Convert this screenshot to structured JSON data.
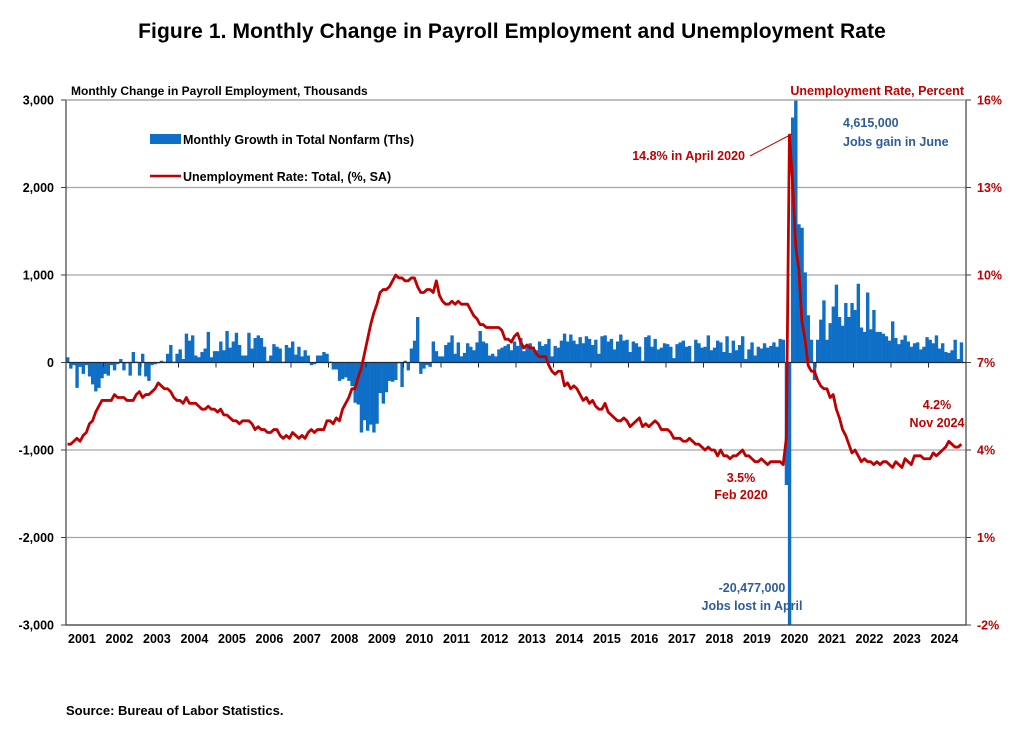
{
  "title": "Figure 1. Monthly Change in Payroll Employment and Unemployment Rate",
  "source": "Source: Bureau of Labor Statistics.",
  "chart_data": {
    "type": "bar+line",
    "title": "Figure 1. Monthly Change in Payroll Employment and Unemployment Rate",
    "left_axis": {
      "label": "Monthly Change in Payroll Employment, Thousands",
      "range": [
        -3000,
        3000
      ],
      "ticks": [
        3000,
        2000,
        1000,
        0,
        -1000,
        -2000,
        -3000
      ],
      "tick_labels": [
        "3,000",
        "2,000",
        "1,000",
        "0",
        "-1,000",
        "-2,000",
        "-3,000"
      ]
    },
    "right_axis": {
      "label": "Unemployment Rate, Percent",
      "range": [
        -2,
        16
      ],
      "ticks": [
        16,
        13,
        10,
        7,
        4,
        1,
        -2
      ],
      "tick_labels": [
        "16%",
        "13%",
        "10%",
        "7%",
        "4%",
        "1%",
        "-2%"
      ]
    },
    "x_axis": {
      "start": "2001-01",
      "end": "2024-11",
      "tick_labels": [
        "2001",
        "2002",
        "2003",
        "2004",
        "2005",
        "2006",
        "2007",
        "2008",
        "2009",
        "2010",
        "2011",
        "2012",
        "2013",
        "2014",
        "2015",
        "2016",
        "2017",
        "2018",
        "2019",
        "2020",
        "2021",
        "2022",
        "2023",
        "2024"
      ]
    },
    "grid": true,
    "legend": {
      "placement": "top-left",
      "entries": [
        {
          "label": "Monthly Growth in Total Nonfarm (Ths)",
          "type": "bar",
          "color": "#0f6fc6"
        },
        {
          "label": "Unemployment Rate: Total, (%, SA)",
          "type": "line",
          "color": "#c00000"
        }
      ]
    },
    "colors": {
      "bar": "#0f6fc6",
      "line": "#c00000",
      "grid": "#a6a6a6",
      "axis": "#404040"
    },
    "series": [
      {
        "name": "Monthly Growth in Total Nonfarm (Ths)",
        "axis": "left",
        "type": "bar",
        "yearly_monthly_values": {
          "2001": [
            60,
            -70,
            -30,
            -290,
            -50,
            -130,
            -30,
            -160,
            -250,
            -330,
            -290,
            -180
          ],
          "2002": [
            -130,
            -150,
            -30,
            -90,
            -20,
            40,
            -90,
            -10,
            -150,
            120,
            10,
            -150
          ],
          "2003": [
            100,
            -160,
            -210,
            -30,
            -20,
            -10,
            20,
            10,
            100,
            200,
            10,
            100
          ],
          "2004": [
            150,
            40,
            330,
            250,
            310,
            80,
            60,
            120,
            160,
            350,
            60,
            130
          ],
          "2005": [
            130,
            240,
            140,
            360,
            170,
            240,
            340,
            200,
            80,
            80,
            340,
            160
          ],
          "2006": [
            280,
            310,
            280,
            180,
            20,
            80,
            210,
            180,
            160,
            10,
            200,
            170
          ],
          "2007": [
            240,
            90,
            180,
            70,
            140,
            80,
            -30,
            -20,
            80,
            80,
            120,
            100
          ],
          "2008": [
            10,
            -80,
            -80,
            -210,
            -190,
            -170,
            -210,
            -270,
            -460,
            -480,
            -800,
            -660
          ],
          "2009": [
            -780,
            -710,
            -800,
            -700,
            -350,
            -470,
            -340,
            -210,
            -220,
            -200,
            -10,
            -280
          ],
          "2010": [
            20,
            -90,
            160,
            250,
            520,
            -130,
            -70,
            -30,
            -50,
            240,
            130,
            70
          ],
          "2011": [
            70,
            200,
            230,
            310,
            100,
            230,
            70,
            110,
            220,
            180,
            140,
            230
          ],
          "2012": [
            360,
            240,
            220,
            80,
            100,
            70,
            150,
            170,
            190,
            210,
            140,
            240
          ],
          "2013": [
            190,
            280,
            130,
            190,
            220,
            180,
            140,
            240,
            190,
            210,
            270,
            70
          ],
          "2014": [
            190,
            170,
            250,
            330,
            240,
            320,
            250,
            210,
            290,
            220,
            300,
            270
          ],
          "2015": [
            200,
            260,
            100,
            300,
            310,
            240,
            270,
            150,
            240,
            320,
            250,
            260
          ],
          "2016": [
            120,
            240,
            220,
            180,
            20,
            290,
            310,
            180,
            270,
            150,
            170,
            220
          ],
          "2017": [
            210,
            180,
            50,
            210,
            230,
            250,
            180,
            190,
            10,
            260,
            220,
            170
          ],
          "2018": [
            180,
            310,
            140,
            170,
            250,
            230,
            120,
            300,
            110,
            250,
            140,
            200
          ],
          "2019": [
            300,
            40,
            150,
            230,
            80,
            180,
            160,
            220,
            170,
            190,
            230,
            180
          ],
          "2020": [
            270,
            260,
            -1400,
            -20477,
            2800,
            4615,
            1580,
            1540,
            1030,
            540,
            260,
            -200
          ],
          "2021": [
            260,
            490,
            710,
            260,
            450,
            640,
            890,
            520,
            420,
            680,
            520,
            680
          ],
          "2022": [
            600,
            900,
            400,
            350,
            800,
            380,
            600,
            350,
            350,
            330,
            300,
            250
          ],
          "2023": [
            470,
            280,
            210,
            260,
            310,
            240,
            180,
            220,
            230,
            150,
            180,
            290
          ],
          "2024": [
            260,
            220,
            310,
            160,
            220,
            120,
            110,
            140,
            260,
            40,
            230
          ]
        }
      },
      {
        "name": "Unemployment Rate: Total, (%, SA)",
        "axis": "right",
        "type": "line",
        "yearly_monthly_values": {
          "2001": [
            4.2,
            4.2,
            4.3,
            4.4,
            4.3,
            4.5,
            4.6,
            4.9,
            5.0,
            5.3,
            5.5,
            5.7
          ],
          "2002": [
            5.7,
            5.7,
            5.7,
            5.9,
            5.8,
            5.8,
            5.8,
            5.7,
            5.7,
            5.7,
            5.9,
            6.0
          ],
          "2003": [
            5.8,
            5.9,
            5.9,
            6.0,
            6.1,
            6.3,
            6.2,
            6.1,
            6.1,
            6.0,
            5.8,
            5.7
          ],
          "2004": [
            5.7,
            5.6,
            5.8,
            5.6,
            5.6,
            5.6,
            5.5,
            5.4,
            5.4,
            5.5,
            5.4,
            5.4
          ],
          "2005": [
            5.3,
            5.4,
            5.2,
            5.2,
            5.1,
            5.0,
            5.0,
            4.9,
            5.0,
            5.0,
            5.0,
            4.9
          ],
          "2006": [
            4.7,
            4.8,
            4.7,
            4.7,
            4.6,
            4.6,
            4.7,
            4.7,
            4.5,
            4.4,
            4.5,
            4.4
          ],
          "2007": [
            4.6,
            4.5,
            4.4,
            4.5,
            4.4,
            4.6,
            4.7,
            4.6,
            4.7,
            4.7,
            4.7,
            5.0
          ],
          "2008": [
            5.0,
            4.9,
            5.1,
            5.0,
            5.4,
            5.6,
            5.8,
            6.1,
            6.1,
            6.5,
            6.8,
            7.3
          ],
          "2009": [
            7.8,
            8.3,
            8.7,
            9.0,
            9.4,
            9.5,
            9.5,
            9.6,
            9.8,
            10.0,
            9.9,
            9.9
          ],
          "2010": [
            9.8,
            9.8,
            9.9,
            9.9,
            9.6,
            9.4,
            9.4,
            9.5,
            9.5,
            9.4,
            9.8,
            9.3
          ],
          "2011": [
            9.1,
            9.0,
            9.0,
            9.1,
            9.0,
            9.1,
            9.0,
            9.0,
            9.0,
            8.8,
            8.6,
            8.5
          ],
          "2012": [
            8.3,
            8.3,
            8.2,
            8.2,
            8.2,
            8.2,
            8.2,
            8.1,
            7.8,
            7.8,
            7.7,
            7.9
          ],
          "2013": [
            8.0,
            7.7,
            7.5,
            7.6,
            7.5,
            7.5,
            7.3,
            7.2,
            7.2,
            7.2,
            6.9,
            6.7
          ],
          "2014": [
            6.6,
            6.7,
            6.7,
            6.2,
            6.3,
            6.1,
            6.2,
            6.1,
            5.9,
            5.7,
            5.8,
            5.6
          ],
          "2015": [
            5.7,
            5.5,
            5.4,
            5.4,
            5.6,
            5.3,
            5.2,
            5.1,
            5.0,
            5.0,
            5.1,
            5.0
          ],
          "2016": [
            4.8,
            4.9,
            5.0,
            5.1,
            4.8,
            4.9,
            4.8,
            4.9,
            5.0,
            4.9,
            4.7,
            4.7
          ],
          "2017": [
            4.7,
            4.6,
            4.4,
            4.4,
            4.4,
            4.3,
            4.3,
            4.4,
            4.3,
            4.2,
            4.2,
            4.1
          ],
          "2018": [
            4.0,
            4.1,
            4.0,
            4.0,
            3.8,
            4.0,
            3.8,
            3.8,
            3.7,
            3.8,
            3.8,
            3.9
          ],
          "2019": [
            4.0,
            3.8,
            3.8,
            3.7,
            3.6,
            3.6,
            3.7,
            3.6,
            3.5,
            3.6,
            3.6,
            3.6
          ],
          "2020": [
            3.6,
            3.5,
            4.4,
            14.8,
            13.2,
            11.0,
            10.2,
            8.4,
            7.8,
            6.9,
            6.7,
            6.7
          ],
          "2021": [
            6.4,
            6.2,
            6.1,
            6.1,
            5.8,
            5.9,
            5.4,
            5.1,
            4.7,
            4.5,
            4.2,
            3.9
          ],
          "2022": [
            4.0,
            3.8,
            3.6,
            3.7,
            3.6,
            3.6,
            3.5,
            3.6,
            3.5,
            3.6,
            3.6,
            3.5
          ],
          "2023": [
            3.4,
            3.6,
            3.5,
            3.4,
            3.7,
            3.6,
            3.5,
            3.8,
            3.8,
            3.8,
            3.7,
            3.7
          ],
          "2024": [
            3.7,
            3.9,
            3.8,
            3.9,
            4.0,
            4.1,
            4.3,
            4.2,
            4.1,
            4.1,
            4.2
          ]
        }
      }
    ],
    "annotations": [
      {
        "id": "peak-rate",
        "lines": [
          "14.8% in April 2020"
        ],
        "color": "#c00000",
        "points_to": {
          "date": "2020-04",
          "value": 14.8,
          "axis": "right"
        }
      },
      {
        "id": "june-gain",
        "lines": [
          "4,615,000",
          "Jobs gain in June"
        ],
        "color": "#2e5c9a"
      },
      {
        "id": "feb-rate",
        "lines": [
          "3.5%",
          "Feb 2020"
        ],
        "color": "#c00000"
      },
      {
        "id": "april-loss",
        "lines": [
          "-20,477,000",
          "Jobs lost in April"
        ],
        "color": "#2e5c9a"
      },
      {
        "id": "nov-rate",
        "lines": [
          "4.2%",
          "Nov 2024"
        ],
        "color": "#c00000"
      }
    ]
  }
}
